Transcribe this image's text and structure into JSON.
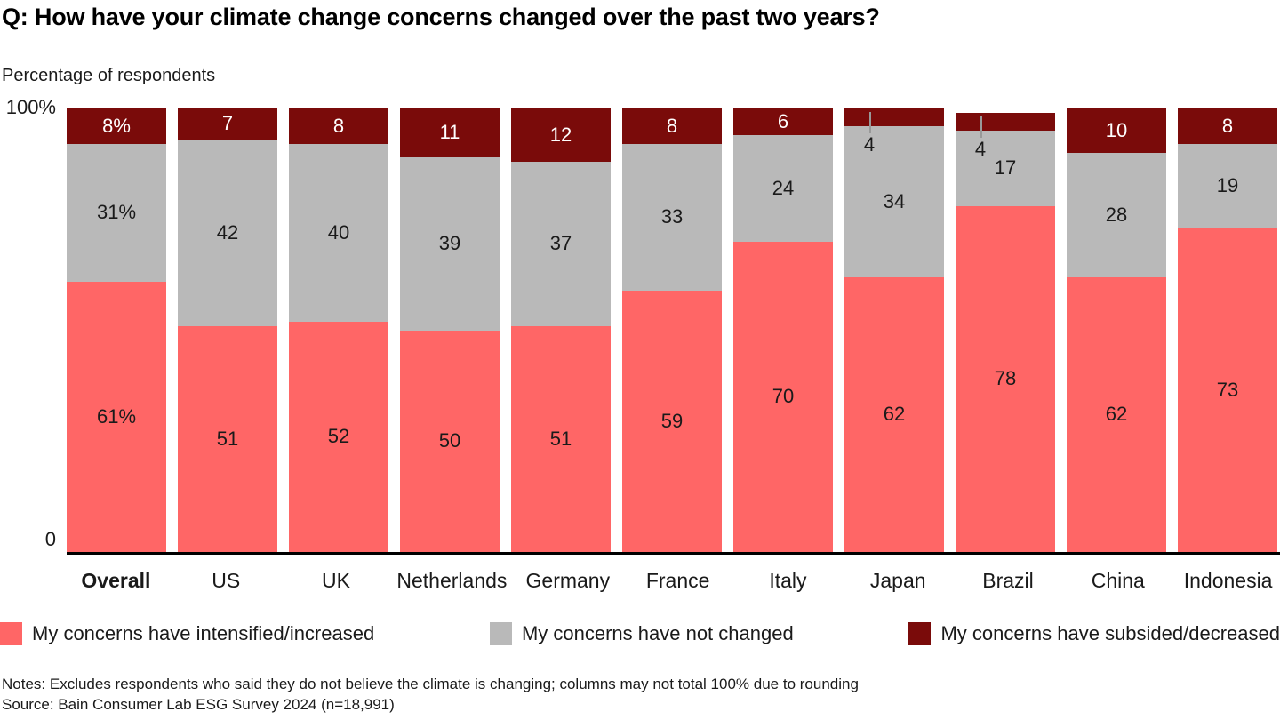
{
  "title": "Q: How have your climate change concerns changed over the past two years?",
  "subtitle": "Percentage of respondents",
  "axis": {
    "y_top": "100%",
    "y_bottom": "0"
  },
  "legend": [
    {
      "label": "My concerns have intensified/increased",
      "color": "#ff6666"
    },
    {
      "label": "My concerns have not changed",
      "color": "#b9b9b9"
    },
    {
      "label": "My concerns have subsided/decreased",
      "color": "#7a0b0a"
    }
  ],
  "notes": "Notes: Excludes respondents who said they do not believe the climate is changing; columns may not total 100% due to rounding",
  "source": "Source: Bain Consumer Lab ESG Survey 2024 (n=18,991)",
  "chart_data": {
    "type": "bar",
    "stacked": true,
    "title": "Q: How have your climate change concerns changed over the past two years?",
    "xlabel": "",
    "ylabel": "Percentage of respondents",
    "ylim": [
      0,
      100
    ],
    "grid": false,
    "legend_position": "bottom",
    "categories": [
      "Overall",
      "US",
      "UK",
      "Netherlands",
      "Germany",
      "France",
      "Italy",
      "Japan",
      "Brazil",
      "China",
      "Indonesia"
    ],
    "series": [
      {
        "name": "My concerns have intensified/increased",
        "color": "#ff6666",
        "values": [
          61,
          51,
          52,
          50,
          51,
          59,
          70,
          62,
          78,
          62,
          73
        ],
        "labels": [
          "61%",
          "51",
          "52",
          "50",
          "51",
          "59",
          "70",
          "62",
          "78",
          "62",
          "73"
        ]
      },
      {
        "name": "My concerns have not changed",
        "color": "#b9b9b9",
        "values": [
          31,
          42,
          40,
          39,
          37,
          33,
          24,
          34,
          17,
          28,
          19
        ],
        "labels": [
          "31%",
          "42",
          "40",
          "39",
          "37",
          "33",
          "24",
          "34",
          "17",
          "28",
          "19"
        ]
      },
      {
        "name": "My concerns have subsided/decreased",
        "color": "#7a0b0a",
        "values": [
          8,
          7,
          8,
          11,
          12,
          8,
          6,
          4,
          4,
          10,
          8
        ],
        "labels": [
          "8%",
          "7",
          "8",
          "11",
          "12",
          "8",
          "6",
          "4",
          "4",
          "10",
          "8"
        ]
      }
    ],
    "outside_label_categories": [
      "Japan",
      "Brazil"
    ]
  }
}
